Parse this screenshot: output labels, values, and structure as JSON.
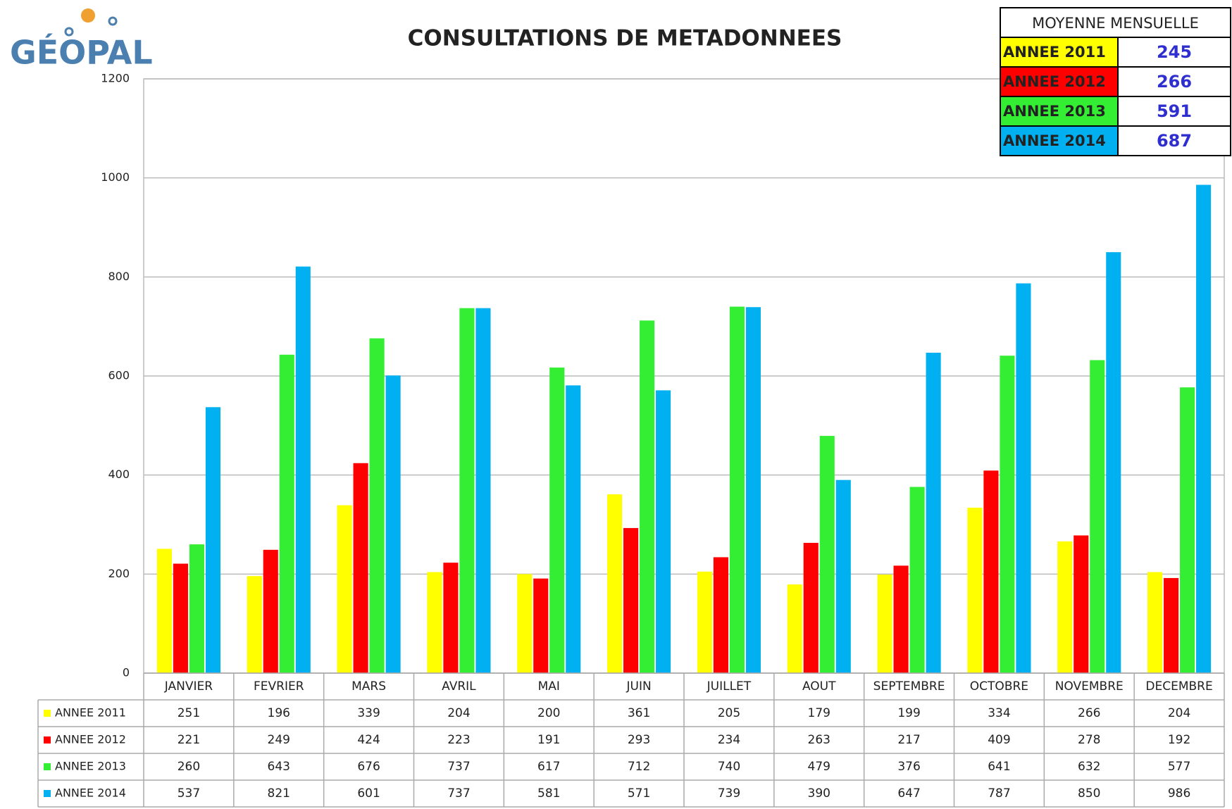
{
  "chart_data": {
    "type": "bar",
    "logo": "GÉOPAL",
    "title": "CONSULTATIONS DE METADONNEES",
    "categories": [
      "JANVIER",
      "FEVRIER",
      "MARS",
      "AVRIL",
      "MAI",
      "JUIN",
      "JUILLET",
      "AOUT",
      "SEPTEMBRE",
      "OCTOBRE",
      "NOVEMBRE",
      "DECEMBRE"
    ],
    "series": [
      {
        "name": "ANNEE 2011",
        "color": "#ffff00",
        "values": [
          251,
          196,
          339,
          204,
          200,
          361,
          205,
          179,
          199,
          334,
          266,
          204
        ]
      },
      {
        "name": "ANNEE 2012",
        "color": "#ff0000",
        "values": [
          221,
          249,
          424,
          223,
          191,
          293,
          234,
          263,
          217,
          409,
          278,
          192
        ]
      },
      {
        "name": "ANNEE 2013",
        "color": "#33ee33",
        "values": [
          260,
          643,
          676,
          737,
          617,
          712,
          740,
          479,
          376,
          641,
          632,
          577
        ]
      },
      {
        "name": "ANNEE 2014",
        "color": "#00b0f0",
        "values": [
          537,
          821,
          601,
          737,
          581,
          571,
          739,
          390,
          647,
          787,
          850,
          986
        ]
      }
    ],
    "ylim": [
      0,
      1200
    ],
    "yticks": [
      0,
      200,
      400,
      600,
      800,
      1000,
      1200
    ],
    "grid": true,
    "summary": {
      "title": "MOYENNE MENSUELLE",
      "rows": [
        {
          "label": "ANNEE 2011",
          "value": 245,
          "color": "#ffff00"
        },
        {
          "label": "ANNEE 2012",
          "value": 266,
          "color": "#ff0000"
        },
        {
          "label": "ANNEE 2013",
          "value": 591,
          "color": "#33ee33"
        },
        {
          "label": "ANNEE 2014",
          "value": 687,
          "color": "#00b0f0"
        }
      ]
    }
  }
}
